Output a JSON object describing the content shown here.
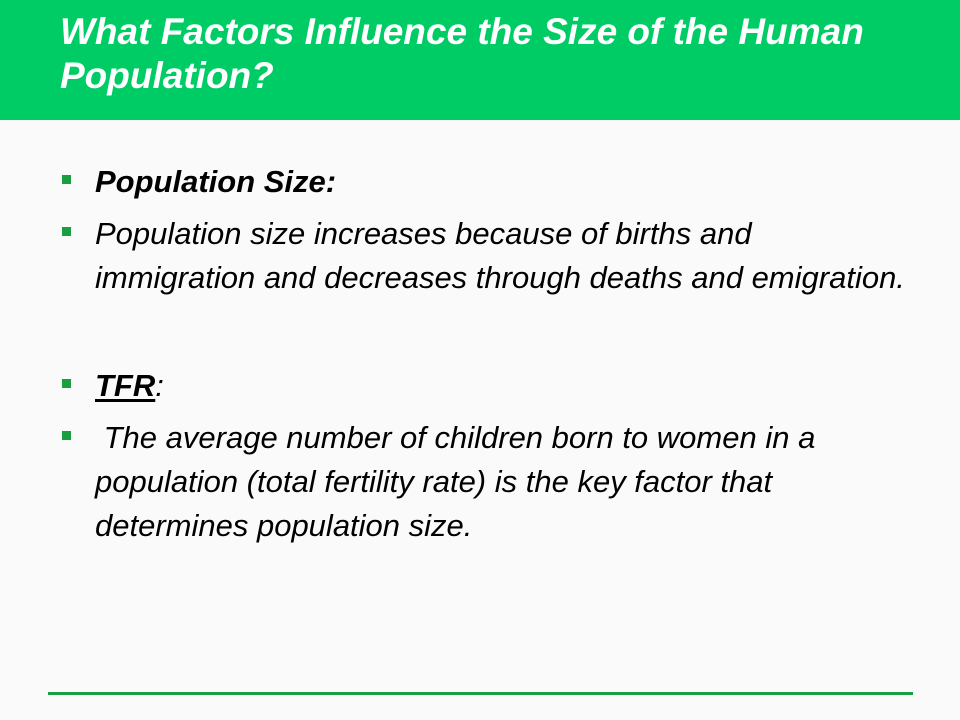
{
  "slide": {
    "title": "What Factors Influence the Size of the Human Population?",
    "bullets": [
      {
        "text": "Population Size:"
      },
      {
        "text": "Population size increases because of births and immigration and decreases through deaths and emigration."
      },
      {
        "term": "TFR",
        "suffix": ":"
      },
      {
        "text": " The average number of children born to women in a population (total fertility rate) is the key factor that determines population size."
      }
    ]
  },
  "colors": {
    "title_bar": "#00cc66",
    "bullet": "#1a9e3f",
    "rule": "#1a9e3f",
    "background": "#fafafa"
  },
  "icons": {
    "bullet": "square-bullet-icon"
  }
}
